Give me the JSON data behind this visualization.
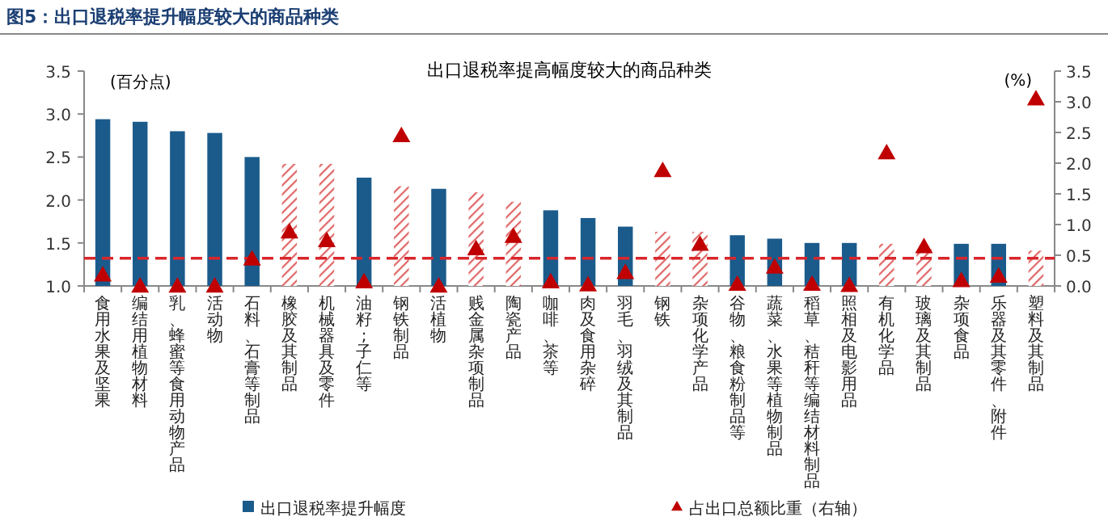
{
  "chart_data": {
    "type": "bar",
    "title": "图5：出口退税率提升幅度较大的商品种类",
    "subtitle": "出口退税率提高幅度较大的商品种类",
    "ylabel": "(百分点)",
    "y2label": "(%)",
    "categories": [
      "食用水果及坚果",
      "编结用植物材料",
      "乳、蜂蜜等食用动物产品",
      "活动物",
      "石料、石膏等制品",
      "橡胶及其制品",
      "机械器具及零件",
      "油籽;子仁等",
      "钢铁制品",
      "活植物",
      "贱金属杂项制品",
      "陶瓷产品",
      "咖啡、茶等",
      "肉及食用杂碎",
      "羽毛、羽绒及其制品",
      "钢铁",
      "杂项化学产品",
      "谷物、粮食粉制品等",
      "蔬菜、水果等植物制品",
      "稻草、秸秆等编结材料制品",
      "照相及电影用品",
      "有机化学品",
      "玻璃及其制品",
      "杂项食品",
      "乐器及其零件、附件",
      "塑料及其制品"
    ],
    "series": [
      {
        "name": "出口退税率提升幅度",
        "color": "#1b5b8c",
        "values": [
          2.94,
          2.91,
          2.8,
          2.78,
          2.5,
          2.42,
          2.42,
          2.26,
          2.16,
          2.13,
          2.09,
          1.98,
          1.88,
          1.79,
          1.69,
          1.63,
          1.63,
          1.59,
          1.55,
          1.5,
          1.5,
          1.49,
          1.44,
          1.49,
          1.49,
          1.41
        ],
        "colors": [
          "#1b5b8c",
          "#1b5b8c",
          "#1b5b8c",
          "#1b5b8c",
          "#1b5b8c",
          "#e06666",
          "#e06666",
          "#1b5b8c",
          "#e06666",
          "#1b5b8c",
          "#e06666",
          "#e06666",
          "#1b5b8c",
          "#1b5b8c",
          "#1b5b8c",
          "#e06666",
          "#e06666",
          "#1b5b8c",
          "#1b5b8c",
          "#1b5b8c",
          "#1b5b8c",
          "#e06666",
          "#e06666",
          "#1b5b8c",
          "#1b5b8c",
          "#e06666"
        ]
      },
      {
        "name": "占出口总额比重（右轴）",
        "type": "scatter",
        "axis": "y2",
        "marker": "triangle",
        "color": "#c00000",
        "values": [
          0.18,
          0.0,
          0.0,
          0.0,
          0.44,
          0.88,
          0.74,
          0.07,
          2.45,
          0.0,
          0.61,
          0.81,
          0.07,
          0.02,
          0.22,
          1.88,
          0.68,
          0.03,
          0.31,
          0.03,
          0.01,
          2.17,
          0.64,
          0.09,
          0.16,
          3.05
        ]
      }
    ],
    "ylim": [
      1.0,
      3.5
    ],
    "yticks": [
      {
        "value": 1,
        "label": "1.0"
      },
      1.5,
      {
        "value": 2,
        "label": "2.0"
      },
      2.5,
      {
        "value": 3,
        "label": "3.0"
      },
      3.5
    ],
    "y2lim": [
      0,
      3.5
    ],
    "y2ticks": [
      {
        "value": 0,
        "label": "0.0"
      },
      0.5,
      {
        "value": 1,
        "label": "1.0"
      },
      1.5,
      {
        "value": 2,
        "label": "2.0"
      },
      2.5,
      {
        "value": 3,
        "label": "3.0"
      },
      3.5
    ],
    "ref_lines": [
      {
        "axis": "y2",
        "value": 0.45,
        "color": "#d9262b",
        "line_style": "dashed"
      }
    ],
    "legend": "bottom"
  }
}
